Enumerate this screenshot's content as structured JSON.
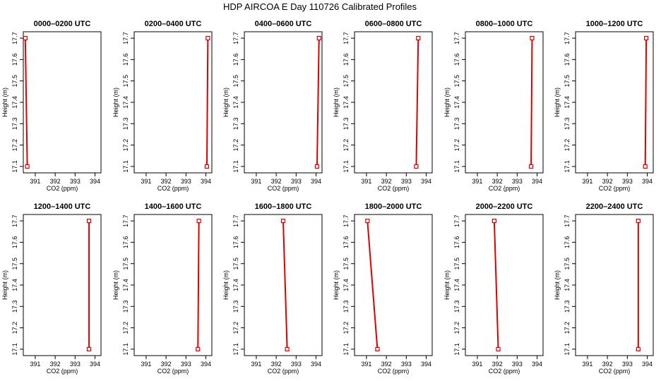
{
  "page_title": "HDP AIRCOA E  Day 110726  Calibrated Profiles",
  "chart_data": {
    "type": "line",
    "title": "HDP AIRCOA E  Day 110726  Calibrated Profiles",
    "xlabel": "CO2 (ppm)",
    "ylabel": "Height (m)",
    "xlim": [
      390.4,
      394.3
    ],
    "ylim": [
      17.07,
      17.73
    ],
    "x_ticks": [
      391,
      392,
      393,
      394
    ],
    "y_ticks": [
      17.1,
      17.2,
      17.3,
      17.4,
      17.5,
      17.6,
      17.7
    ],
    "y_tick_labels": [
      "17.1",
      "17.2",
      "17.3",
      "17.4",
      "17.5",
      "17.6",
      "17.7"
    ],
    "x_tick_labels": [
      "391",
      "392",
      "393",
      "394"
    ],
    "grid": false,
    "line_color": "#dd0000",
    "marker": "open-square",
    "panels": [
      {
        "title": "0000–0200 UTC",
        "points": [
          {
            "x": 390.5,
            "y": 17.7
          },
          {
            "x": 390.6,
            "y": 17.1
          }
        ]
      },
      {
        "title": "0200–0400 UTC",
        "points": [
          {
            "x": 394.1,
            "y": 17.7
          },
          {
            "x": 394.05,
            "y": 17.1
          }
        ]
      },
      {
        "title": "0400–0600 UTC",
        "points": [
          {
            "x": 394.15,
            "y": 17.7
          },
          {
            "x": 394.05,
            "y": 17.1
          }
        ]
      },
      {
        "title": "0600–0800 UTC",
        "points": [
          {
            "x": 393.6,
            "y": 17.7
          },
          {
            "x": 393.5,
            "y": 17.1
          }
        ]
      },
      {
        "title": "0800–1000 UTC",
        "points": [
          {
            "x": 393.75,
            "y": 17.7
          },
          {
            "x": 393.7,
            "y": 17.1
          }
        ]
      },
      {
        "title": "1000–1200 UTC",
        "points": [
          {
            "x": 393.95,
            "y": 17.7
          },
          {
            "x": 393.9,
            "y": 17.1
          }
        ]
      },
      {
        "title": "1200–1400 UTC",
        "points": [
          {
            "x": 393.7,
            "y": 17.7
          },
          {
            "x": 393.7,
            "y": 17.1
          }
        ]
      },
      {
        "title": "1400–1600 UTC",
        "points": [
          {
            "x": 393.65,
            "y": 17.7
          },
          {
            "x": 393.6,
            "y": 17.1
          }
        ]
      },
      {
        "title": "1600–1800 UTC",
        "points": [
          {
            "x": 392.35,
            "y": 17.7
          },
          {
            "x": 392.55,
            "y": 17.1
          }
        ]
      },
      {
        "title": "1800–2000 UTC",
        "points": [
          {
            "x": 391.05,
            "y": 17.7
          },
          {
            "x": 391.55,
            "y": 17.1
          }
        ]
      },
      {
        "title": "2000–2200 UTC",
        "points": [
          {
            "x": 391.85,
            "y": 17.7
          },
          {
            "x": 392.05,
            "y": 17.1
          }
        ]
      },
      {
        "title": "2200–2400 UTC",
        "points": [
          {
            "x": 393.55,
            "y": 17.7
          },
          {
            "x": 393.55,
            "y": 17.1
          }
        ]
      }
    ]
  }
}
